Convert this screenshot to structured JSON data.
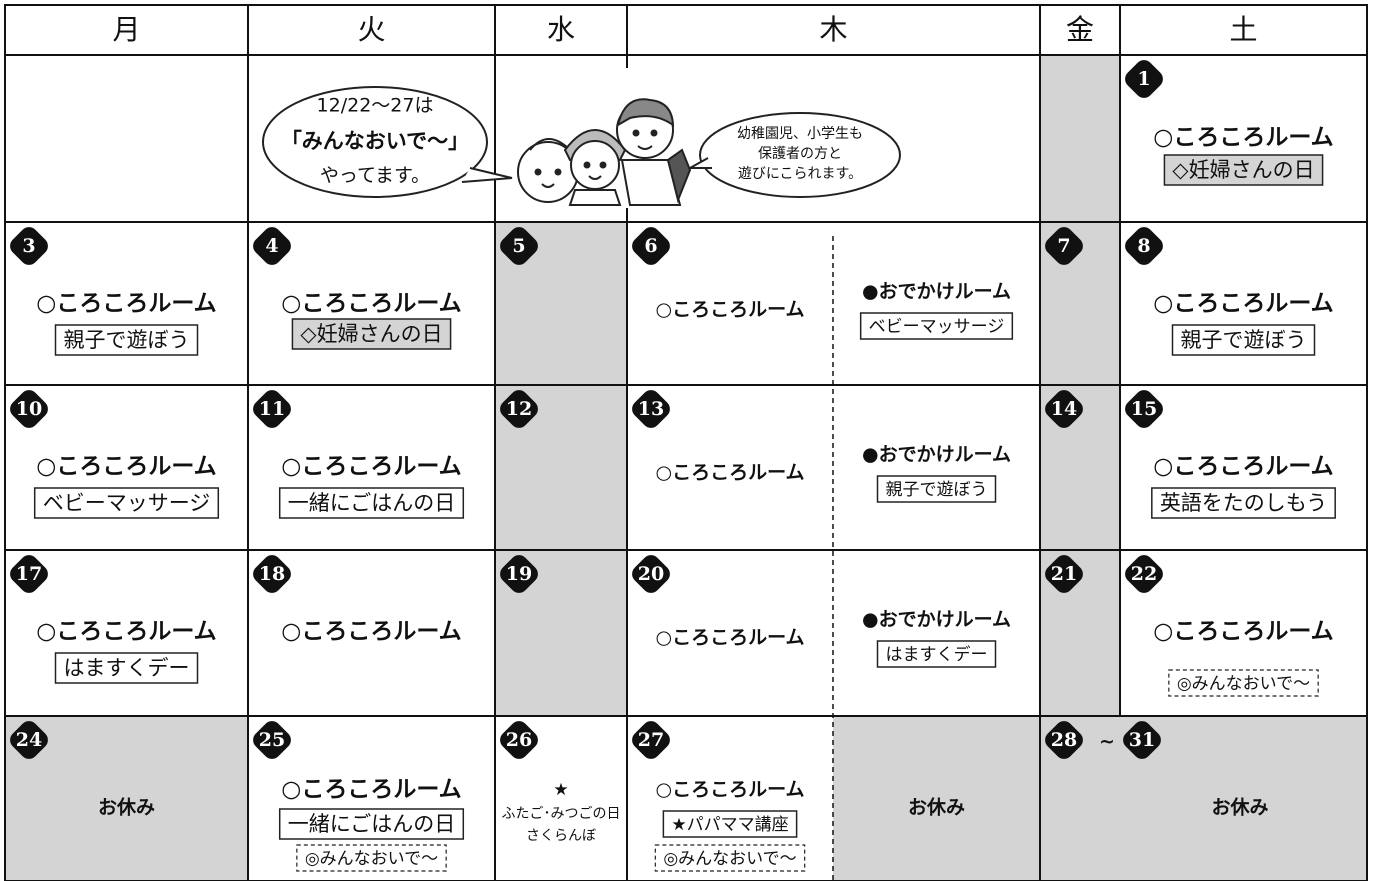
{
  "header": {
    "days": [
      "月",
      "火",
      "水",
      "木",
      "金",
      "土"
    ]
  },
  "bubbles": {
    "left": [
      "12/22〜27は",
      "「みんなおいで〜」",
      "やってます。"
    ],
    "right": [
      "幼稚園児、小学生も",
      "保護者の方と",
      "遊びにこられます。"
    ]
  },
  "cells": [
    {
      "day": "1",
      "room": "○ころころルーム",
      "shaded_event": "◇妊婦さんの日"
    },
    {
      "day": "3",
      "room": "○ころころルーム",
      "event": "親子で遊ぼう"
    },
    {
      "day": "4",
      "room": "○ころころルーム",
      "shaded_event": "◇妊婦さんの日"
    },
    {
      "day": "5"
    },
    {
      "day": "6",
      "room": "○ころころルーム",
      "outing": "●おでかけルーム",
      "event": "ベビーマッサージ"
    },
    {
      "day": "7"
    },
    {
      "day": "8",
      "room": "○ころころルーム",
      "event": "親子で遊ぼう"
    },
    {
      "day": "10",
      "room": "○ころころルーム",
      "event": "ベビーマッサージ"
    },
    {
      "day": "11",
      "room": "○ころころルーム",
      "event": "一緒にごはんの日"
    },
    {
      "day": "12"
    },
    {
      "day": "13",
      "room": "○ころころルーム",
      "outing": "●おでかけルーム",
      "event": "親子で遊ぼう"
    },
    {
      "day": "14"
    },
    {
      "day": "15",
      "room": "○ころころルーム",
      "event": "英語をたのしもう"
    },
    {
      "day": "17",
      "room": "○ころころルーム",
      "event": "はますくデー"
    },
    {
      "day": "18",
      "room": "○ころころルーム"
    },
    {
      "day": "19"
    },
    {
      "day": "20",
      "room": "○ころころルーム",
      "outing": "●おでかけルーム",
      "event": "はますくデー"
    },
    {
      "day": "21"
    },
    {
      "day": "22",
      "room": "○ころころルーム",
      "dashed_event": "◎みんなおいで〜"
    },
    {
      "day": "24",
      "closed": "お休み"
    },
    {
      "day": "25",
      "room": "○ころころルーム",
      "event": "一緒にごはんの日",
      "dashed_event": "◎みんなおいで〜"
    },
    {
      "day": "26",
      "mark": "★",
      "notes": [
        "ふたご･みつごの日",
        "さくらんぼ"
      ]
    },
    {
      "day": "27",
      "room": "○ころころルーム",
      "event": "★パパママ講座",
      "dashed_event": "◎みんなおいで〜",
      "closed": "お休み"
    },
    {
      "day": "28",
      "range_sep": "~",
      "day_end": "31",
      "closed": "お休み"
    }
  ]
}
